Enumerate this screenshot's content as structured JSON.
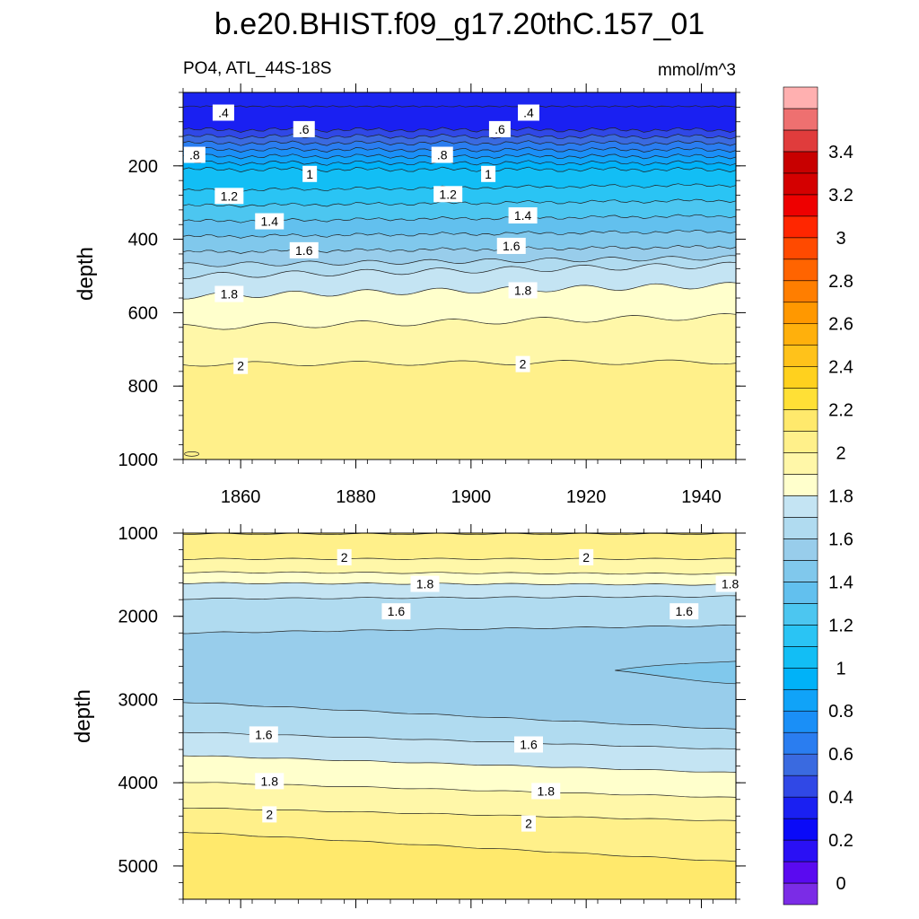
{
  "chart_data": {
    "type": "contour",
    "title": "b.e20.BHIST.f09_g17.20thC.157_01",
    "subtitle_left": "PO4, ATL_44S-18S",
    "units": "mmol/m^3",
    "xlabel": "",
    "ylabel": "depth",
    "xlim": [
      1850,
      1946
    ],
    "x_ticks": [
      "1860",
      "1880",
      "1900",
      "1920",
      "1940"
    ],
    "colorbar": {
      "levels": [
        0,
        0.1,
        0.2,
        0.3,
        0.4,
        0.5,
        0.6,
        0.7,
        0.8,
        0.9,
        1.0,
        1.1,
        1.2,
        1.3,
        1.4,
        1.5,
        1.6,
        1.7,
        1.8,
        1.9,
        2.0,
        2.1,
        2.2,
        2.3,
        2.4,
        2.5,
        2.6,
        2.7,
        2.8,
        2.9,
        3.0,
        3.1,
        3.2,
        3.3,
        3.4,
        3.5
      ],
      "tick_labels": [
        "0",
        "0.2",
        "0.4",
        "0.6",
        "0.8",
        "1",
        "1.2",
        "1.4",
        "1.6",
        "1.8",
        "2",
        "2.2",
        "2.4",
        "2.6",
        "2.8",
        "3",
        "3.2",
        "3.4"
      ],
      "colors": [
        "#7b2ce6",
        "#5a0af0",
        "#2a10f5",
        "#0a0af8",
        "#1a20f2",
        "#3048e6",
        "#3a6ae0",
        "#2a7df0",
        "#1a8ff7",
        "#10a3f8",
        "#00b2f8",
        "#12bef5",
        "#2ac4f4",
        "#4cc6f0",
        "#62c0ee",
        "#80c8ec",
        "#98cdeb",
        "#b0dbf0",
        "#c4e4f3",
        "#ffffcc",
        "#fff7a8",
        "#fff08a",
        "#ffe96c",
        "#ffe036",
        "#ffd11e",
        "#ffc21a",
        "#ffb00c",
        "#ff9800",
        "#ff7e00",
        "#ff6400",
        "#ff4a00",
        "#ff2600",
        "#ee0000",
        "#d40000",
        "#c80000",
        "#e03c3c",
        "#ee7070",
        "#ffb0b0"
      ]
    },
    "panels": [
      {
        "name": "upper",
        "ylim": [
          0,
          1000
        ],
        "y_ticks": [
          "200",
          "400",
          "600",
          "800",
          "1000"
        ],
        "contour_labels": [
          {
            "text": ".4",
            "x": 1857,
            "depth": 55
          },
          {
            "text": ".4",
            "x": 1910,
            "depth": 55
          },
          {
            "text": ".6",
            "x": 1871,
            "depth": 100
          },
          {
            "text": ".6",
            "x": 1905,
            "depth": 100
          },
          {
            "text": ".8",
            "x": 1852,
            "depth": 170
          },
          {
            "text": ".8",
            "x": 1895,
            "depth": 170
          },
          {
            "text": "1",
            "x": 1872,
            "depth": 222
          },
          {
            "text": "1",
            "x": 1903,
            "depth": 222
          },
          {
            "text": "1.2",
            "x": 1858,
            "depth": 282
          },
          {
            "text": "1.2",
            "x": 1896,
            "depth": 277
          },
          {
            "text": "1.4",
            "x": 1865,
            "depth": 351
          },
          {
            "text": "1.4",
            "x": 1909,
            "depth": 335
          },
          {
            "text": "1.6",
            "x": 1871,
            "depth": 430
          },
          {
            "text": "1.6",
            "x": 1907,
            "depth": 418
          },
          {
            "text": "1.8",
            "x": 1858,
            "depth": 549
          },
          {
            "text": "1.8",
            "x": 1909,
            "depth": 539
          },
          {
            "text": "2",
            "x": 1860,
            "depth": 745
          },
          {
            "text": "2",
            "x": 1909,
            "depth": 740
          }
        ]
      },
      {
        "name": "lower",
        "ylim": [
          1000,
          5400
        ],
        "y_ticks": [
          "1000",
          "2000",
          "3000",
          "4000",
          "5000"
        ],
        "contour_labels": [
          {
            "text": "2",
            "x": 1878,
            "depth": 1290
          },
          {
            "text": "2",
            "x": 1920,
            "depth": 1290
          },
          {
            "text": "1.8",
            "x": 1892,
            "depth": 1610
          },
          {
            "text": "1.8",
            "x": 1945,
            "depth": 1610
          },
          {
            "text": "1.6",
            "x": 1887,
            "depth": 1940
          },
          {
            "text": "1.6",
            "x": 1937,
            "depth": 1940
          },
          {
            "text": "1.6",
            "x": 1864,
            "depth": 3420
          },
          {
            "text": "1.6",
            "x": 1910,
            "depth": 3540
          },
          {
            "text": "1.8",
            "x": 1865,
            "depth": 3980
          },
          {
            "text": "1.8",
            "x": 1913,
            "depth": 4100
          },
          {
            "text": "2",
            "x": 1865,
            "depth": 4380
          },
          {
            "text": "2",
            "x": 1910,
            "depth": 4490
          }
        ]
      }
    ]
  }
}
